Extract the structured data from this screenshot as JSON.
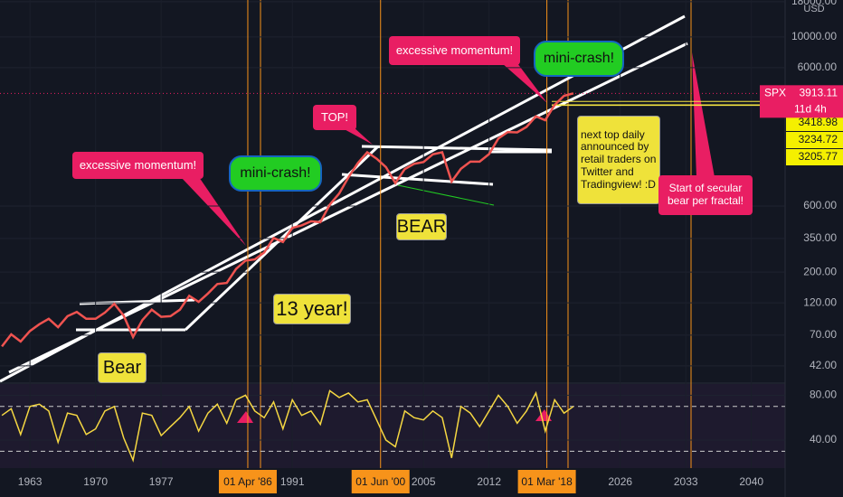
{
  "chart_data": [
    {
      "type": "line",
      "y_scale": "log",
      "currency": "USD",
      "x": [
        1960,
        1961,
        1962,
        1963,
        1964,
        1965,
        1966,
        1967,
        1968,
        1969,
        1970,
        1971,
        1972,
        1973,
        1974,
        1975,
        1976,
        1977,
        1978,
        1979,
        1980,
        1981,
        1982,
        1983,
        1984,
        1985,
        1986,
        1987,
        1988,
        1989,
        1990,
        1991,
        1992,
        1993,
        1994,
        1995,
        1996,
        1997,
        1998,
        1999,
        2000,
        2001,
        2002,
        2003,
        2004,
        2005,
        2006,
        2007,
        2008,
        2009,
        2010,
        2011,
        2012,
        2013,
        2014,
        2015,
        2016,
        2017,
        2018,
        2019,
        2020,
        2021
      ],
      "series": [
        {
          "name": "SPX",
          "color": "#ef5350",
          "values": [
            58,
            71,
            63,
            75,
            84,
            92,
            80,
            96,
            103,
            92,
            92,
            102,
            118,
            97,
            68,
            90,
            107,
            95,
            96,
            107,
            135,
            122,
            140,
            164,
            167,
            211,
            242,
            247,
            277,
            353,
            330,
            417,
            435,
            466,
            459,
            615,
            740,
            970,
            1229,
            1469,
            1320,
            1148,
            880,
            1111,
            1211,
            1248,
            1418,
            1468,
            903,
            1115,
            1257,
            1257,
            1426,
            1848,
            2058,
            2043,
            2238,
            2673,
            2506,
            3230,
            3756,
            3913.11
          ]
        }
      ],
      "xlim": [
        1959.8,
        2043.6
      ],
      "xticks": [
        1963,
        1970,
        1977,
        {
          "value": 1986.25,
          "label": "01 Apr '86"
        },
        1991,
        {
          "value": 2000.42,
          "label": "01 Jun '00"
        },
        2005,
        2012,
        {
          "value": 2018.17,
          "label": "01 Mar '18"
        },
        2026,
        2033,
        2040
      ],
      "ylim": [
        32,
        18500
      ],
      "yticks": [
        {
          "value": 18000,
          "label": "18000.00"
        },
        {
          "value": 10000,
          "label": "10000.00"
        },
        {
          "value": 6000,
          "label": "6000.00"
        },
        {
          "value": 600,
          "label": "600.00"
        },
        {
          "value": 350,
          "label": "350.00"
        },
        {
          "value": 200,
          "label": "200.00"
        },
        {
          "value": 120,
          "label": "120.00"
        },
        {
          "value": 70,
          "label": "70.00"
        },
        {
          "value": 42,
          "label": "42.00"
        }
      ],
      "last_price": 3913.11,
      "countdown": "11d 4h",
      "price_levels": [
        3418.98,
        3234.72,
        3205.77
      ],
      "annotations": [
        "excessive momentum!",
        "mini-crash!",
        "TOP!",
        "excessive momentum!",
        "mini-crash!",
        "BEAR",
        "Bear",
        "13 year!",
        "next top daily announced by retail traders on Twitter and Tradingview! :D",
        "Start of secular bear per fractal!"
      ]
    },
    {
      "type": "line",
      "x": [
        1960,
        1961,
        1962,
        1963,
        1964,
        1965,
        1966,
        1967,
        1968,
        1969,
        1970,
        1971,
        1972,
        1973,
        1974,
        1975,
        1976,
        1977,
        1978,
        1979,
        1980,
        1981,
        1982,
        1983,
        1984,
        1985,
        1986,
        1987,
        1988,
        1989,
        1990,
        1991,
        1992,
        1993,
        1994,
        1995,
        1996,
        1997,
        1998,
        1999,
        2000,
        2001,
        2002,
        2003,
        2004,
        2005,
        2006,
        2007,
        2008,
        2009,
        2010,
        2011,
        2012,
        2013,
        2014,
        2015,
        2016,
        2017,
        2018,
        2019,
        2020,
        2021
      ],
      "series": [
        {
          "color": "#f5d742",
          "values": [
            62,
            68,
            45,
            70,
            72,
            66,
            38,
            64,
            62,
            45,
            50,
            66,
            70,
            42,
            22,
            64,
            62,
            44,
            52,
            60,
            70,
            48,
            64,
            72,
            55,
            76,
            80,
            66,
            60,
            74,
            50,
            76,
            62,
            66,
            54,
            84,
            78,
            82,
            74,
            76,
            58,
            40,
            34,
            66,
            60,
            58,
            66,
            60,
            24,
            70,
            64,
            52,
            66,
            80,
            70,
            55,
            66,
            82,
            48,
            76,
            64,
            70
          ]
        }
      ],
      "ylim": [
        15,
        90
      ],
      "yticks": [
        {
          "value": 80,
          "label": "80.00"
        },
        {
          "value": 40,
          "label": "40.00"
        }
      ],
      "bands": [
        30,
        70
      ]
    }
  ]
}
